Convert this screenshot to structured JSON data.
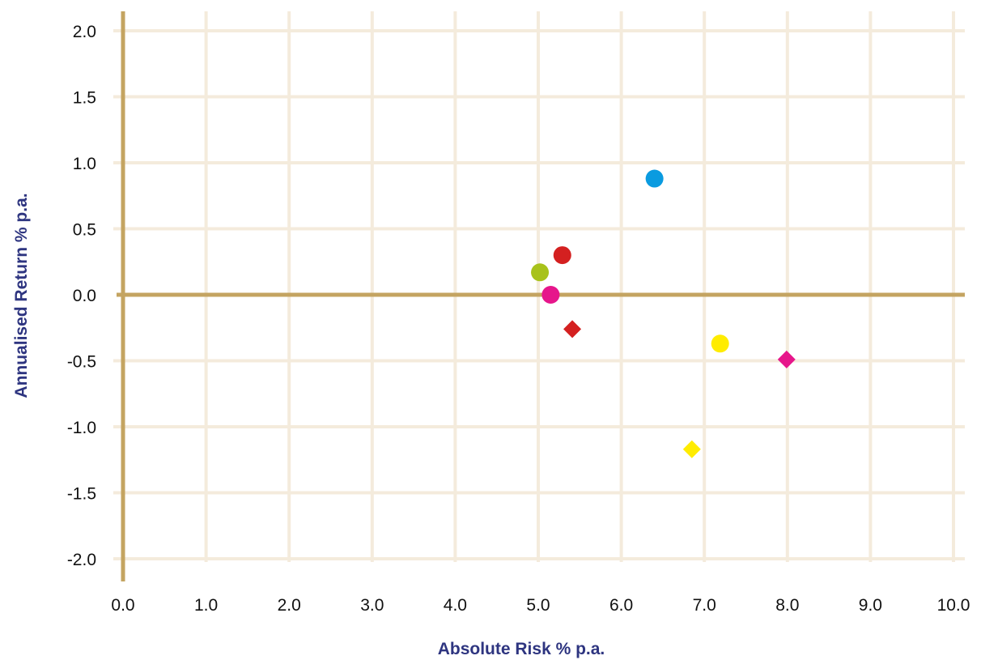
{
  "chart_data": {
    "type": "scatter",
    "xlabel": "Absolute Risk % p.a.",
    "ylabel": "Annualised Return % p.a.",
    "xlim": [
      0,
      10
    ],
    "ylim": [
      -2,
      2
    ],
    "x_ticks": [
      "0.0",
      "1.0",
      "2.0",
      "3.0",
      "4.0",
      "5.0",
      "6.0",
      "7.0",
      "8.0",
      "9.0",
      "10.0"
    ],
    "y_ticks": [
      "2.0",
      "1.5",
      "1.0",
      "0.5",
      "0.0",
      "-0.5",
      "-1.0",
      "-1.5",
      "-2.0"
    ],
    "grid": true,
    "legend": "none",
    "points": [
      {
        "x": 6.4,
        "y": 0.88,
        "marker": "circle",
        "color": "#0a9be0"
      },
      {
        "x": 5.29,
        "y": 0.3,
        "marker": "circle",
        "color": "#d42020"
      },
      {
        "x": 5.02,
        "y": 0.17,
        "marker": "circle",
        "color": "#a8c21b"
      },
      {
        "x": 5.15,
        "y": 0.0,
        "marker": "circle",
        "color": "#e6168b"
      },
      {
        "x": 5.41,
        "y": -0.26,
        "marker": "diamond",
        "color": "#d42020"
      },
      {
        "x": 7.19,
        "y": -0.37,
        "marker": "circle",
        "color": "#ffec00"
      },
      {
        "x": 7.99,
        "y": -0.49,
        "marker": "diamond",
        "color": "#e6168b"
      },
      {
        "x": 6.85,
        "y": -1.17,
        "marker": "diamond",
        "color": "#ffec00"
      }
    ]
  }
}
